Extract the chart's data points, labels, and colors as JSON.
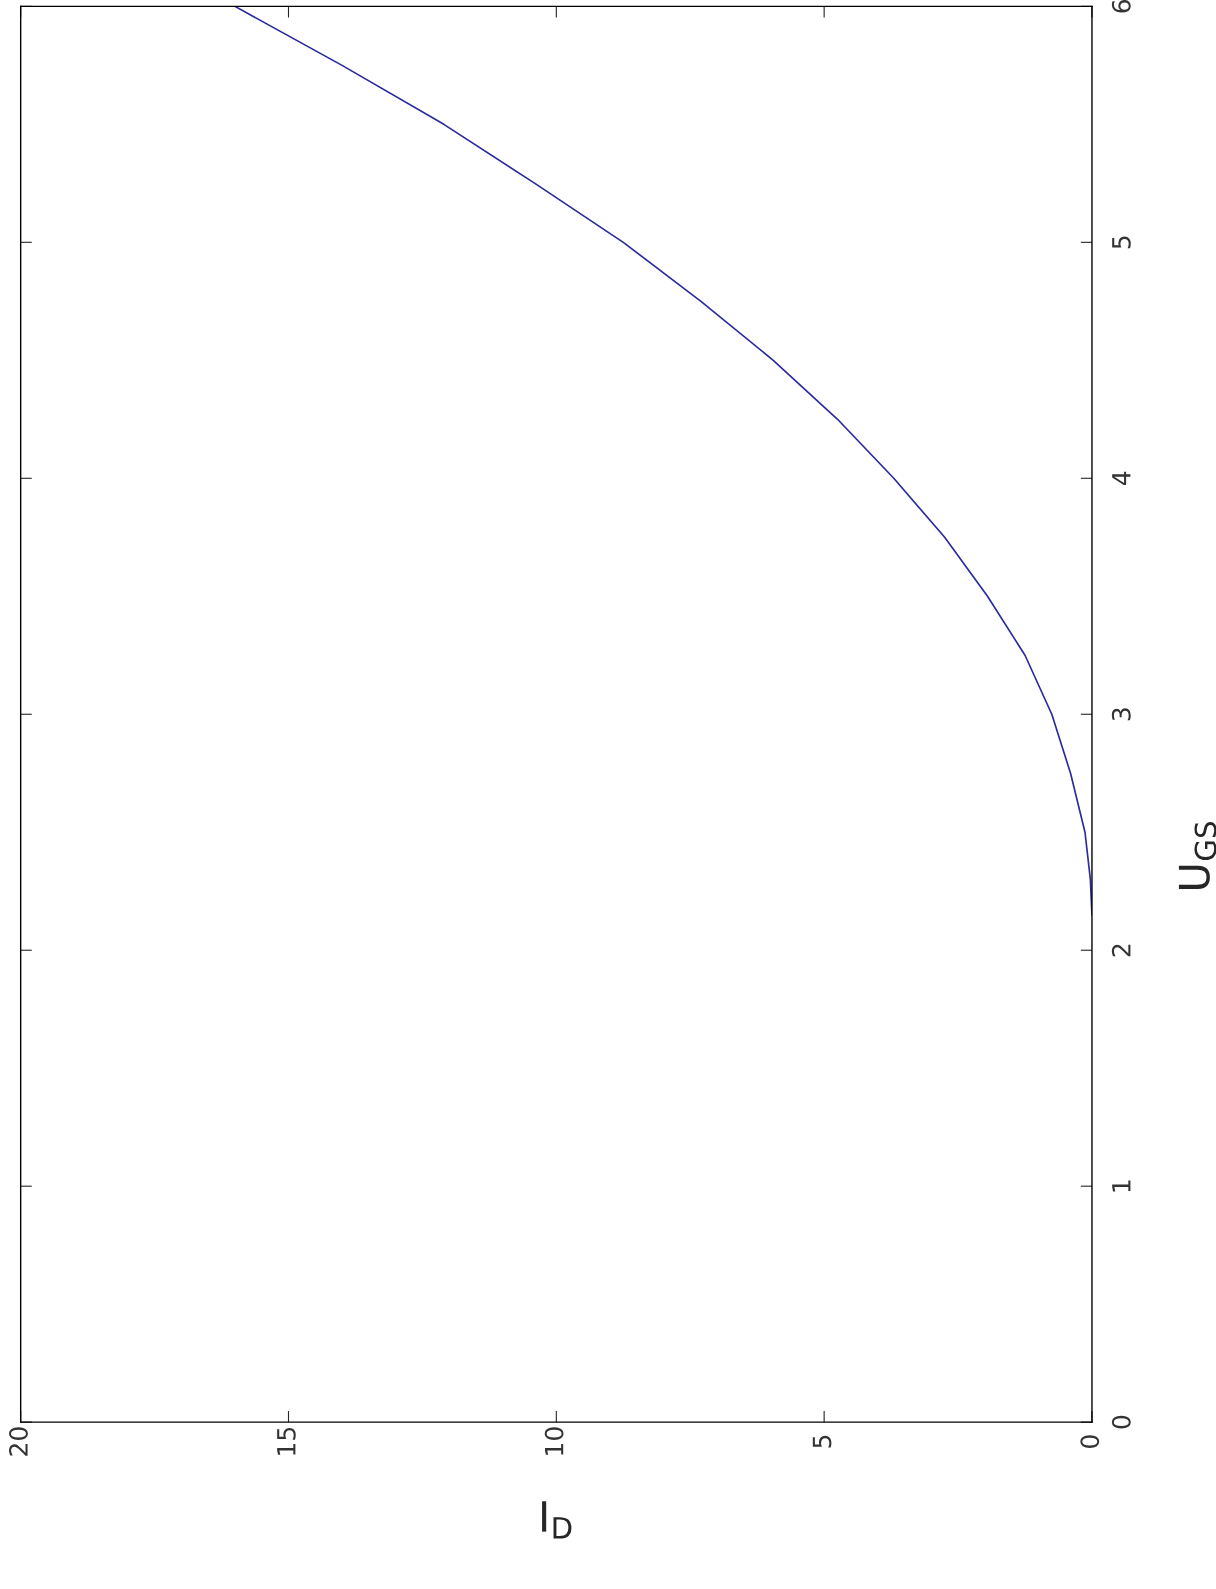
{
  "chart_data": {
    "type": "line",
    "xlabel": "I$_{D}$",
    "ylabel": "U$_{GS}$",
    "x": [
      0,
      0.03,
      0.13,
      0.4,
      0.75,
      1.25,
      1.95,
      2.75,
      3.7,
      4.75,
      5.95,
      7.3,
      8.75,
      10.4,
      12.1,
      14.0,
      16.0
    ],
    "values": [
      2.15,
      2.3,
      2.5,
      2.75,
      3,
      3.25,
      3.5,
      3.75,
      4,
      4.25,
      4.5,
      4.75,
      5,
      5.25,
      5.5,
      5.75,
      6
    ],
    "color": "#2b2b9e",
    "xlim": [
      20,
      0
    ],
    "xticks": [
      20,
      15,
      10,
      5,
      0
    ],
    "ylim": [
      0,
      6
    ],
    "yticks": [
      0,
      1,
      2,
      3,
      4,
      5,
      6
    ]
  }
}
